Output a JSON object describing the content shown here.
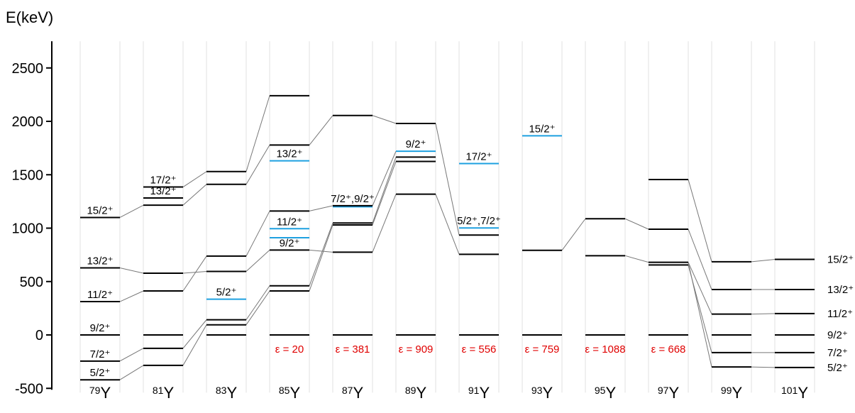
{
  "chart_data": {
    "type": "level-scheme",
    "ylabel": "E(keV)",
    "ylim": [
      -500,
      2750
    ],
    "yticks": [
      -500,
      0,
      500,
      1000,
      1500,
      2000,
      2500
    ],
    "colors": {
      "level": "#000000",
      "highlight": "#1ea0e0",
      "connector": "#777777",
      "epsilon": "#e00000",
      "grid": "#e0e0e0"
    },
    "isotopes": [
      {
        "mass": "79",
        "element": "Y",
        "levels": [
          {
            "e": 0,
            "label": "9/2⁺"
          },
          {
            "e": -245,
            "label": "7/2⁺"
          },
          {
            "e": -420,
            "label": "5/2⁺"
          },
          {
            "e": 312,
            "label": "11/2⁺"
          },
          {
            "e": 628,
            "label": "13/2⁺"
          },
          {
            "e": 1100,
            "label": "15/2⁺"
          }
        ]
      },
      {
        "mass": "81",
        "element": "Y",
        "levels": [
          {
            "e": 0
          },
          {
            "e": -125
          },
          {
            "e": -285
          },
          {
            "e": 412
          },
          {
            "e": 578
          },
          {
            "e": 1215
          },
          {
            "e": 1282,
            "label": "13/2⁺"
          },
          {
            "e": 1385,
            "label": "17/2⁺"
          }
        ]
      },
      {
        "mass": "83",
        "element": "Y",
        "levels": [
          {
            "e": 0
          },
          {
            "e": 95
          },
          {
            "e": 142
          },
          {
            "e": 335,
            "label": "5/2⁺",
            "highlight": true
          },
          {
            "e": 595
          },
          {
            "e": 738
          },
          {
            "e": 1410
          },
          {
            "e": 1530
          }
        ]
      },
      {
        "mass": "85",
        "element": "Y",
        "epsilon": "ε = 20",
        "levels": [
          {
            "e": 0
          },
          {
            "e": 412
          },
          {
            "e": 460
          },
          {
            "e": 795,
            "label": "9/2⁺"
          },
          {
            "e": 910,
            "highlight": true
          },
          {
            "e": 995,
            "label": "11/2⁺",
            "highlight": true
          },
          {
            "e": 1160
          },
          {
            "e": 1630,
            "label": "13/2⁺",
            "highlight": true
          },
          {
            "e": 1778
          },
          {
            "e": 2240
          }
        ]
      },
      {
        "mass": "87",
        "element": "Y",
        "epsilon": "ε = 381",
        "levels": [
          {
            "e": 0
          },
          {
            "e": 775
          },
          {
            "e": 1030
          },
          {
            "e": 1048
          },
          {
            "e": 1200,
            "highlight": true
          },
          {
            "e": 1210,
            "label": "7/2⁺,9/2⁺"
          },
          {
            "e": 2055
          }
        ]
      },
      {
        "mass": "89",
        "element": "Y",
        "epsilon": "ε = 909",
        "levels": [
          {
            "e": 0
          },
          {
            "e": 1318
          },
          {
            "e": 1625
          },
          {
            "e": 1665
          },
          {
            "e": 1720,
            "label": "9/2⁺",
            "highlight": true
          },
          {
            "e": 1980
          }
        ]
      },
      {
        "mass": "91",
        "element": "Y",
        "epsilon": "ε = 556",
        "levels": [
          {
            "e": 0
          },
          {
            "e": 755
          },
          {
            "e": 935
          },
          {
            "e": 1002,
            "label": "5/2⁺,7/2⁺",
            "highlight": true
          },
          {
            "e": 1605,
            "label": "17/2⁺",
            "highlight": true
          }
        ]
      },
      {
        "mass": "93",
        "element": "Y",
        "epsilon": "ε = 759",
        "levels": [
          {
            "e": 0
          },
          {
            "e": 792
          },
          {
            "e": 1865,
            "label": "15/2⁺",
            "highlight": true
          }
        ]
      },
      {
        "mass": "95",
        "element": "Y",
        "epsilon": "ε = 1088",
        "levels": [
          {
            "e": 0
          },
          {
            "e": 742
          },
          {
            "e": 1088
          }
        ]
      },
      {
        "mass": "97",
        "element": "Y",
        "epsilon": "ε = 668",
        "levels": [
          {
            "e": 0
          },
          {
            "e": 655
          },
          {
            "e": 680
          },
          {
            "e": 990
          },
          {
            "e": 1455
          }
        ]
      },
      {
        "mass": "99",
        "element": "Y",
        "levels": [
          {
            "e": 0
          },
          {
            "e": -165
          },
          {
            "e": -300
          },
          {
            "e": 195
          },
          {
            "e": 425
          },
          {
            "e": 685
          }
        ]
      },
      {
        "mass": "101",
        "element": "Y",
        "levels": [
          {
            "e": 0,
            "label": "9/2⁺"
          },
          {
            "e": -165,
            "label": "7/2⁺"
          },
          {
            "e": -305,
            "label": "5/2⁺"
          },
          {
            "e": 200,
            "label": "11/2⁺"
          },
          {
            "e": 425,
            "label": "13/2⁺"
          },
          {
            "e": 708,
            "label": "15/2⁺"
          }
        ]
      }
    ],
    "connectors": [
      [
        0,
        -420,
        1,
        -285
      ],
      [
        0,
        -245,
        1,
        -125
      ],
      [
        0,
        312,
        1,
        412
      ],
      [
        0,
        628,
        1,
        578
      ],
      [
        0,
        1100,
        1,
        1215
      ],
      [
        1,
        -285,
        2,
        95
      ],
      [
        1,
        -125,
        2,
        142
      ],
      [
        1,
        412,
        2,
        738
      ],
      [
        1,
        578,
        2,
        595
      ],
      [
        1,
        1215,
        2,
        1410
      ],
      [
        1,
        1385,
        2,
        1530
      ],
      [
        2,
        95,
        3,
        412
      ],
      [
        2,
        142,
        3,
        460
      ],
      [
        2,
        595,
        3,
        795
      ],
      [
        2,
        738,
        3,
        1160
      ],
      [
        2,
        1410,
        3,
        1778
      ],
      [
        2,
        1530,
        3,
        2240
      ],
      [
        3,
        412,
        4,
        1030
      ],
      [
        3,
        460,
        4,
        1048
      ],
      [
        3,
        795,
        4,
        775
      ],
      [
        3,
        1160,
        4,
        1210
      ],
      [
        3,
        1778,
        4,
        2055
      ],
      [
        4,
        775,
        5,
        1318
      ],
      [
        4,
        1030,
        5,
        1625
      ],
      [
        4,
        1048,
        5,
        1665
      ],
      [
        4,
        1210,
        5,
        1720
      ],
      [
        4,
        2055,
        5,
        1980
      ],
      [
        5,
        1980,
        6,
        935
      ],
      [
        5,
        1318,
        6,
        755
      ],
      [
        7,
        792,
        8,
        1088
      ],
      [
        8,
        1088,
        9,
        990
      ],
      [
        8,
        742,
        9,
        680
      ],
      [
        9,
        1455,
        10,
        685
      ],
      [
        9,
        990,
        10,
        425
      ],
      [
        9,
        680,
        10,
        195
      ],
      [
        9,
        680,
        10,
        -300
      ],
      [
        9,
        655,
        10,
        -165
      ],
      [
        10,
        685,
        11,
        708
      ],
      [
        10,
        425,
        11,
        425
      ],
      [
        10,
        195,
        11,
        200
      ],
      [
        10,
        -165,
        11,
        -165
      ],
      [
        10,
        -300,
        11,
        -305
      ]
    ]
  }
}
